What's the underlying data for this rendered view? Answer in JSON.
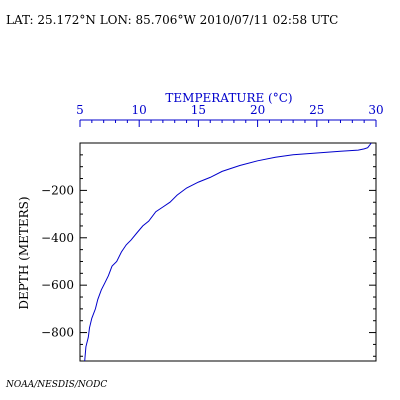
{
  "header": {
    "location_time": "LAT: 25.172°N LON: 85.706°W 2010/07/11 02:58 UTC"
  },
  "credit": "NOAA/NESDIS/NODC",
  "colors": {
    "profile": "#0000cc",
    "top_axis": "#0000cc",
    "frame": "#000000"
  },
  "chart_data": {
    "type": "line",
    "title": "",
    "xlabel": "TEMPERATURE (°C)",
    "ylabel": "DEPTH (METERS)",
    "x_axis_position": "top",
    "xlim": [
      5,
      30
    ],
    "ylim": [
      -920,
      0
    ],
    "x_ticks": [
      5,
      10,
      15,
      20,
      25,
      30
    ],
    "x_tick_labels": [
      "5",
      "10",
      "15",
      "20",
      "25",
      "30"
    ],
    "y_ticks": [
      -200,
      -400,
      -600,
      -800
    ],
    "y_tick_labels": [
      "−200",
      "−400",
      "−600",
      "−800"
    ],
    "grid": false,
    "legend": "none",
    "series": [
      {
        "x": [
          29.6,
          29.3,
          29.0,
          28.5,
          27.0,
          25.0,
          23.0,
          21.5,
          20.0,
          18.5,
          17.0,
          16.0,
          15.0,
          14.0,
          13.2,
          12.6,
          12.0,
          11.4,
          10.8,
          10.3,
          9.8,
          9.3,
          8.9,
          8.5,
          8.1,
          7.7,
          7.4,
          7.1,
          6.8,
          6.5,
          6.3,
          6.0,
          5.8,
          5.7,
          5.5,
          5.4
        ],
        "y": [
          0,
          -20,
          -25,
          -30,
          -35,
          -42,
          -50,
          -60,
          -75,
          -95,
          -120,
          -145,
          -165,
          -190,
          -220,
          -250,
          -270,
          -290,
          -330,
          -350,
          -380,
          -410,
          -430,
          -460,
          -500,
          -520,
          -560,
          -590,
          -620,
          -660,
          -700,
          -740,
          -780,
          -820,
          -860,
          -920
        ]
      }
    ]
  }
}
